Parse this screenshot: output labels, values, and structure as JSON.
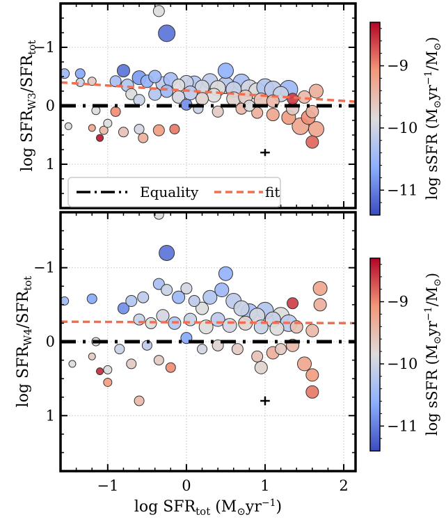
{
  "figure": {
    "panels": [
      {
        "id": "top",
        "ylabel_main": "log SFR",
        "ylabel_sub": "W3",
        "ylabel_tail": "/SFR",
        "ylabel_tail_sub": "tot",
        "legend": {
          "equality_label": "Equality",
          "fit_label": "fit"
        },
        "colorbar": {
          "label_main": "log sSFR (M",
          "label_sub": "⊙",
          "label_mid": "yr",
          "label_sup": "−1",
          "label_tail": "/M",
          "label_tail_sub": "⊙",
          "label_end": ")",
          "ticks": [
            "−9",
            "−10",
            "−11"
          ]
        }
      },
      {
        "id": "bottom",
        "ylabel_main": "log SFR",
        "ylabel_sub": "W4",
        "ylabel_tail": "/SFR",
        "ylabel_tail_sub": "tot",
        "colorbar": {
          "label_main": "log sSFR (M",
          "label_sub": "⊙",
          "label_mid": "yr",
          "label_sup": "−1",
          "label_tail": "/M",
          "label_tail_sub": "⊙",
          "label_end": ")",
          "ticks": [
            "−9",
            "−10",
            "−11"
          ]
        }
      }
    ],
    "xlabel_main": "log SFR",
    "xlabel_sub": "tot",
    "xlabel_unit": " (M",
    "xlabel_unit_sub": "⊙",
    "xlabel_unit_mid": "yr",
    "xlabel_unit_sup": "−1",
    "xlabel_unit_end": ")",
    "x_tick_labels": [
      "−1",
      "0",
      "1",
      "2"
    ],
    "y_tick_labels": [
      "1",
      "0",
      "−1"
    ],
    "colors": {
      "equality": "#000000",
      "fit": "#f46d4f",
      "cmap_low": "#3b4cc0",
      "cmap_mid": "#dddcdc",
      "cmap_high": "#b40426"
    }
  },
  "chart_data": [
    {
      "type": "scatter",
      "panel": "top",
      "xlim": [
        -1.6,
        2.15
      ],
      "ylim": [
        -1.75,
        1.75
      ],
      "x_ticks": [
        -1,
        0,
        1,
        2
      ],
      "y_ticks": [
        -1,
        0,
        1
      ],
      "grid": true,
      "legend_position": "lower-left",
      "equality_line": {
        "y": 0
      },
      "fit_line": {
        "x": [
          -1.6,
          2.15
        ],
        "y": [
          0.4,
          0.07
        ]
      },
      "error_bar": {
        "x": 1.0,
        "y": -0.8,
        "xerr": 0.06,
        "yerr": 0.06
      },
      "color_range": [
        -11.5,
        -8.5
      ],
      "points": [
        [
          -0.35,
          1.62,
          -10.0,
          8
        ],
        [
          -0.25,
          1.24,
          -11.2,
          12
        ],
        [
          -1.55,
          0.55,
          -10.6,
          7
        ],
        [
          -1.35,
          0.55,
          -10.8,
          7
        ],
        [
          -1.35,
          0.4,
          -10.2,
          6
        ],
        [
          -1.2,
          0.42,
          -9.8,
          6
        ],
        [
          -0.8,
          0.6,
          -11.2,
          9
        ],
        [
          -0.9,
          0.42,
          -10.5,
          8
        ],
        [
          -0.75,
          0.35,
          -10.4,
          9
        ],
        [
          -0.6,
          0.48,
          -10.9,
          10
        ],
        [
          -0.5,
          0.42,
          -10.7,
          9
        ],
        [
          -0.4,
          0.5,
          -10.6,
          9
        ],
        [
          -0.3,
          0.38,
          -10.3,
          10
        ],
        [
          -0.2,
          0.45,
          -10.5,
          10
        ],
        [
          -0.1,
          0.35,
          -10.0,
          9
        ],
        [
          0.0,
          0.4,
          -10.2,
          10
        ],
        [
          0.1,
          0.38,
          -10.4,
          11
        ],
        [
          0.2,
          0.32,
          -10.1,
          10
        ],
        [
          0.3,
          0.42,
          -10.3,
          11
        ],
        [
          0.4,
          0.3,
          -10.0,
          11
        ],
        [
          0.5,
          0.6,
          -10.7,
          11
        ],
        [
          0.5,
          0.35,
          -10.4,
          12
        ],
        [
          0.6,
          0.28,
          -10.2,
          11
        ],
        [
          0.7,
          0.4,
          -10.5,
          12
        ],
        [
          0.8,
          0.3,
          -10.1,
          12
        ],
        [
          0.9,
          0.25,
          -10.0,
          12
        ],
        [
          1.0,
          0.32,
          -10.4,
          12
        ],
        [
          1.1,
          0.28,
          -10.3,
          12
        ],
        [
          1.2,
          0.2,
          -10.2,
          11
        ],
        [
          1.3,
          0.28,
          -10.6,
          13
        ],
        [
          1.35,
          0.12,
          -8.8,
          8
        ],
        [
          1.5,
          0.15,
          -9.6,
          9
        ],
        [
          1.65,
          0.25,
          -9.5,
          10
        ],
        [
          -0.7,
          0.2,
          -10.0,
          8
        ],
        [
          -0.6,
          0.1,
          -10.2,
          8
        ],
        [
          -0.4,
          0.2,
          -10.4,
          9
        ],
        [
          -0.25,
          0.25,
          -10.6,
          9
        ],
        [
          -0.1,
          0.15,
          -10.1,
          9
        ],
        [
          0.05,
          0.22,
          -10.3,
          10
        ],
        [
          0.2,
          0.12,
          -9.9,
          9
        ],
        [
          0.35,
          0.18,
          -10.0,
          10
        ],
        [
          0.6,
          0.12,
          -9.9,
          10
        ],
        [
          0.75,
          0.15,
          -9.8,
          10
        ],
        [
          0.95,
          0.1,
          -9.7,
          10
        ],
        [
          1.1,
          0.08,
          -9.6,
          9
        ],
        [
          -1.5,
          -0.35,
          -10.0,
          5
        ],
        [
          -1.2,
          -0.38,
          -9.4,
          5
        ],
        [
          -1.05,
          -0.42,
          -9.6,
          6
        ],
        [
          -1.0,
          -0.3,
          -10.0,
          6
        ],
        [
          -0.9,
          -0.1,
          -9.2,
          7
        ],
        [
          -0.8,
          -0.45,
          -9.7,
          7
        ],
        [
          -0.6,
          -0.4,
          -10.1,
          7
        ],
        [
          -0.55,
          -0.55,
          -9.5,
          7
        ],
        [
          -0.35,
          -0.42,
          -9.3,
          8
        ],
        [
          -0.15,
          -0.4,
          -9.1,
          7
        ],
        [
          -1.1,
          -0.55,
          -8.6,
          5
        ],
        [
          -1.15,
          -0.08,
          -10.0,
          6
        ],
        [
          0.0,
          0.02,
          -11.0,
          8
        ],
        [
          0.15,
          -0.05,
          -10.2,
          7
        ],
        [
          0.4,
          -0.1,
          -9.8,
          8
        ],
        [
          0.7,
          -0.05,
          -9.6,
          8
        ],
        [
          0.9,
          -0.12,
          -9.5,
          8
        ],
        [
          1.1,
          -0.15,
          -9.4,
          9
        ],
        [
          1.3,
          -0.2,
          -9.3,
          10
        ],
        [
          1.45,
          -0.35,
          -9.4,
          12
        ],
        [
          1.6,
          -0.1,
          -9.5,
          9
        ],
        [
          1.55,
          -0.2,
          -9.2,
          10
        ],
        [
          1.65,
          -0.4,
          -9.4,
          11
        ],
        [
          1.6,
          -0.62,
          -9.0,
          9
        ],
        [
          1.35,
          -0.05,
          -9.8,
          9
        ],
        [
          0.8,
          0.0,
          -10.0,
          8
        ]
      ]
    },
    {
      "type": "scatter",
      "panel": "bottom",
      "xlim": [
        -1.6,
        2.15
      ],
      "ylim": [
        -1.75,
        1.75
      ],
      "x_ticks": [
        -1,
        0,
        1,
        2
      ],
      "y_ticks": [
        -1,
        0,
        1
      ],
      "grid": true,
      "equality_line": {
        "y": 0
      },
      "fit_line": {
        "x": [
          -1.6,
          2.15
        ],
        "y": [
          0.27,
          0.25
        ]
      },
      "error_bar": {
        "x": 1.0,
        "y": -0.8,
        "xerr": 0.06,
        "yerr": 0.06
      },
      "color_range": [
        -11.5,
        -8.5
      ],
      "points": [
        [
          -0.35,
          1.72,
          -10.0,
          7
        ],
        [
          -0.25,
          1.2,
          -11.2,
          11
        ],
        [
          -1.55,
          0.55,
          -10.6,
          6
        ],
        [
          -1.2,
          0.58,
          -10.8,
          7
        ],
        [
          -0.8,
          0.45,
          -11.0,
          8
        ],
        [
          -0.7,
          0.55,
          -10.4,
          8
        ],
        [
          -0.55,
          0.6,
          -10.3,
          8
        ],
        [
          -0.35,
          0.78,
          -10.5,
          8
        ],
        [
          -0.25,
          0.7,
          -10.2,
          8
        ],
        [
          -0.1,
          0.6,
          -10.6,
          9
        ],
        [
          0.0,
          0.72,
          -10.1,
          8
        ],
        [
          0.1,
          0.55,
          -10.3,
          8
        ],
        [
          0.2,
          0.45,
          -10.0,
          9
        ],
        [
          0.3,
          0.6,
          -10.4,
          10
        ],
        [
          0.45,
          0.7,
          -10.6,
          10
        ],
        [
          0.5,
          0.92,
          -10.7,
          10
        ],
        [
          0.6,
          0.55,
          -10.3,
          11
        ],
        [
          0.7,
          0.45,
          -10.2,
          11
        ],
        [
          0.8,
          0.4,
          -10.5,
          12
        ],
        [
          0.9,
          0.35,
          -10.1,
          11
        ],
        [
          1.0,
          0.42,
          -10.4,
          12
        ],
        [
          1.1,
          0.3,
          -10.2,
          11
        ],
        [
          1.2,
          0.35,
          -10.0,
          12
        ],
        [
          1.3,
          0.25,
          -10.3,
          12
        ],
        [
          1.35,
          0.52,
          -8.8,
          8
        ],
        [
          1.7,
          0.72,
          -9.4,
          10
        ],
        [
          1.7,
          0.5,
          -9.5,
          9
        ],
        [
          -0.6,
          0.3,
          -10.2,
          8
        ],
        [
          -0.45,
          0.25,
          -10.0,
          8
        ],
        [
          -0.3,
          0.35,
          -10.1,
          9
        ],
        [
          -0.15,
          0.25,
          -10.4,
          9
        ],
        [
          0.05,
          0.3,
          -10.2,
          9
        ],
        [
          0.25,
          0.2,
          -10.0,
          10
        ],
        [
          0.4,
          0.3,
          -10.3,
          10
        ],
        [
          0.55,
          0.22,
          -10.1,
          10
        ],
        [
          0.75,
          0.25,
          -9.9,
          10
        ],
        [
          0.95,
          0.2,
          -10.2,
          10
        ],
        [
          1.15,
          0.18,
          -10.0,
          10
        ],
        [
          1.4,
          0.2,
          -9.7,
          9
        ],
        [
          1.6,
          0.15,
          -9.6,
          9
        ],
        [
          -1.45,
          -0.3,
          -10.0,
          5
        ],
        [
          -1.2,
          -0.2,
          -9.8,
          5
        ],
        [
          -1.0,
          -0.38,
          -10.0,
          6
        ],
        [
          -1.1,
          -0.4,
          -8.7,
          5
        ],
        [
          -1.0,
          -0.55,
          -9.3,
          6
        ],
        [
          -0.85,
          -0.1,
          -10.2,
          7
        ],
        [
          -0.7,
          -0.3,
          -9.8,
          7
        ],
        [
          -0.6,
          -0.8,
          -9.6,
          7
        ],
        [
          -0.5,
          -0.05,
          -10.3,
          7
        ],
        [
          -0.35,
          -0.25,
          -9.8,
          7
        ],
        [
          -0.2,
          -0.35,
          -9.2,
          7
        ],
        [
          -1.15,
          0.0,
          -10.0,
          6
        ],
        [
          0.0,
          0.05,
          -10.8,
          8
        ],
        [
          0.2,
          -0.1,
          -10.1,
          7
        ],
        [
          0.4,
          -0.05,
          -9.9,
          8
        ],
        [
          0.65,
          -0.1,
          -9.8,
          8
        ],
        [
          0.9,
          -0.2,
          -9.7,
          8
        ],
        [
          1.1,
          -0.15,
          -9.5,
          9
        ],
        [
          0.95,
          -0.35,
          -9.9,
          9
        ],
        [
          1.35,
          -0.05,
          -9.6,
          9
        ],
        [
          1.5,
          -0.3,
          -9.4,
          10
        ],
        [
          1.6,
          -0.45,
          -9.3,
          9
        ],
        [
          1.6,
          -0.68,
          -9.1,
          9
        ],
        [
          1.2,
          -0.1,
          -9.8,
          8
        ]
      ]
    }
  ]
}
